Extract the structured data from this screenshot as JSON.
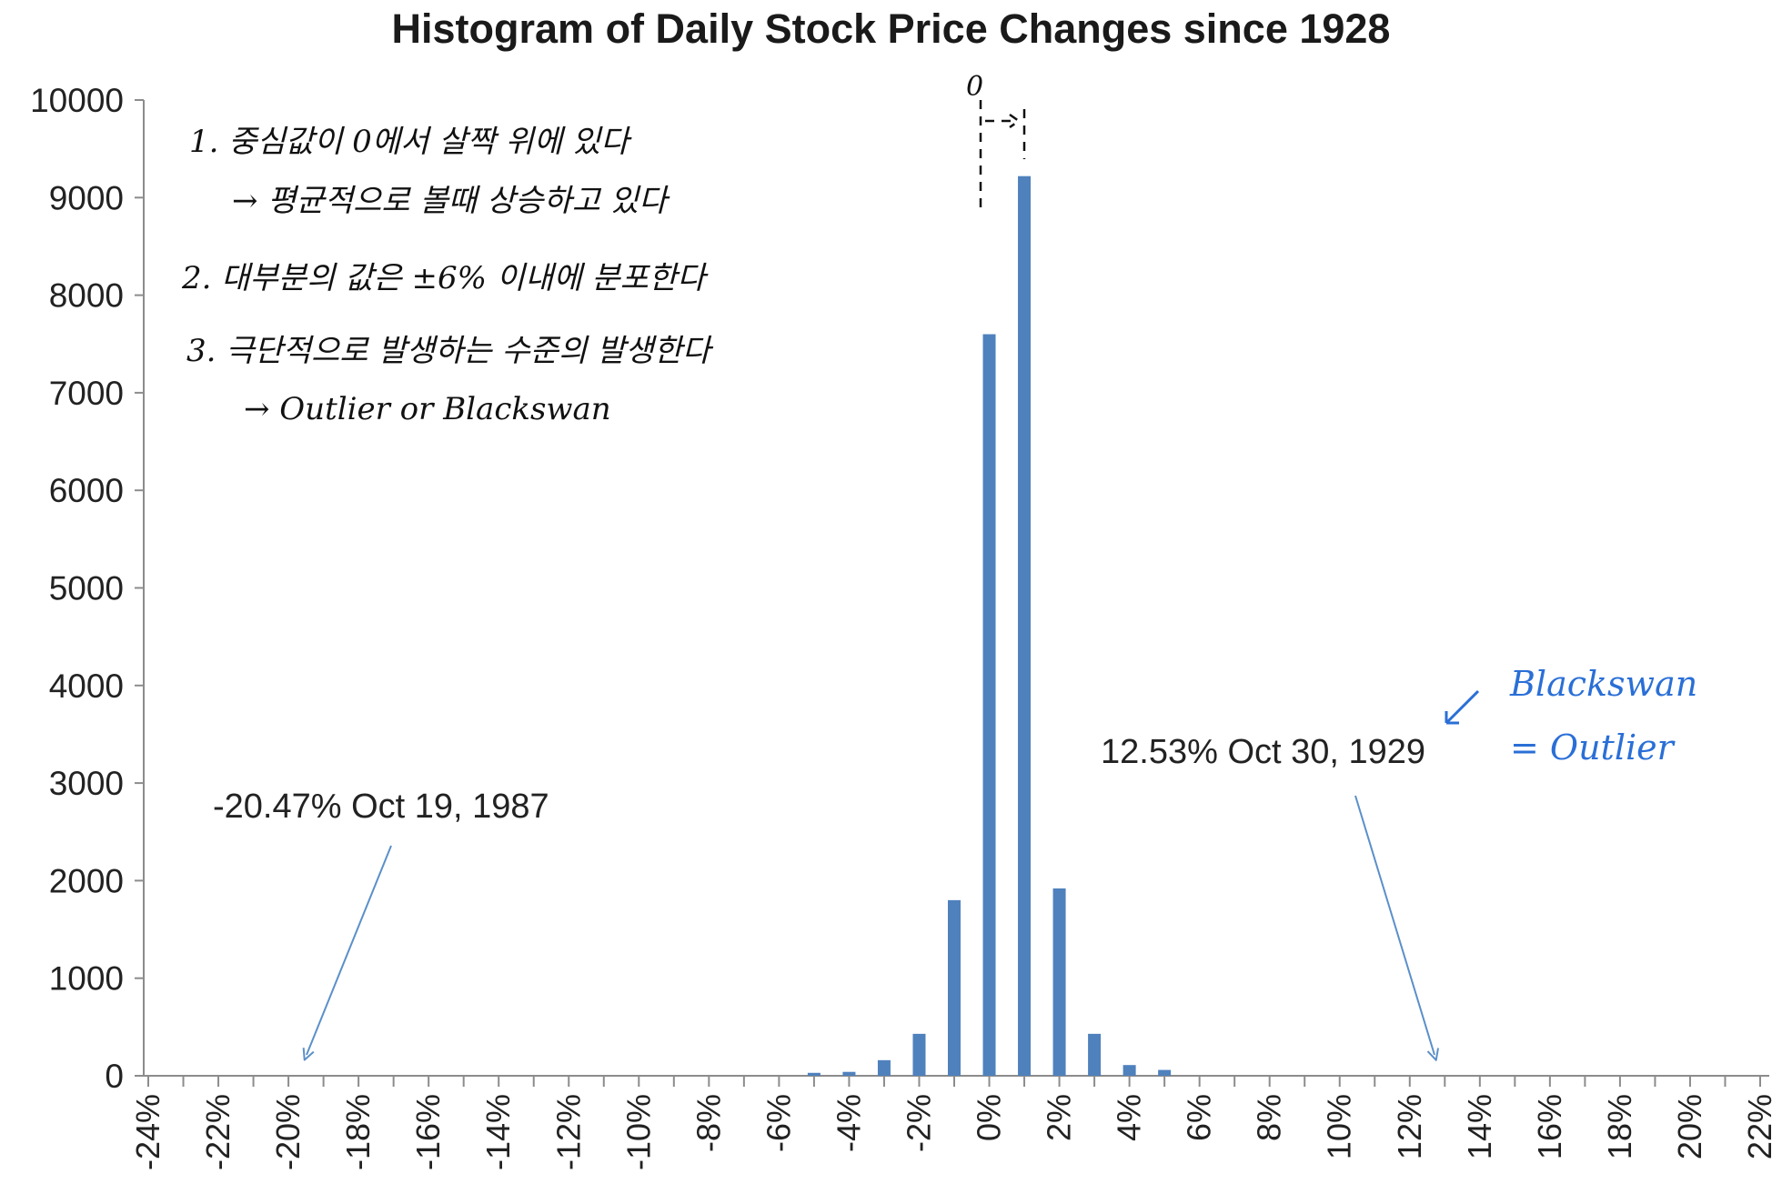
{
  "chart_data": {
    "type": "bar",
    "title": "Histogram of Daily Stock Price Changes  since 1928",
    "xlabel": "",
    "ylabel": "",
    "ylim": [
      0,
      10000
    ],
    "yticks": [
      0,
      1000,
      2000,
      3000,
      4000,
      5000,
      6000,
      7000,
      8000,
      9000,
      10000
    ],
    "xticks": [
      "-24%",
      "-22%",
      "-20%",
      "-18%",
      "-16%",
      "-14%",
      "-12%",
      "-10%",
      "-8%",
      "-6%",
      "-4%",
      "-2%",
      "0%",
      "2%",
      "4%",
      "6%",
      "8%",
      "10%",
      "12%",
      "14%",
      "16%",
      "18%",
      "20%",
      "22%"
    ],
    "bin_centers": [
      -5,
      -4,
      -3,
      -2,
      -1,
      0,
      1,
      2,
      3,
      4,
      5
    ],
    "values": [
      30,
      40,
      160,
      430,
      1800,
      7600,
      9220,
      1920,
      430,
      110,
      60
    ],
    "grid": false,
    "bar_color": "#4f81bd"
  },
  "annotations": {
    "left_label": "-20.47% Oct 19, 1987",
    "right_label": "12.53% Oct 30, 1929"
  },
  "handwritten": {
    "line1": "1. 중심값이 0에서 살짝 위에 있다",
    "line2": "→ 평균적으로 볼때 상승하고 있다",
    "line3": "2. 대부분의 값은 ±6% 이내에 분포한다",
    "line4": "3. 극단적으로 발생하는 수준의 발생한다",
    "line5": "→ Outlier or Blackswan",
    "zero_mark": "0",
    "blue_line1": "Blackswan",
    "blue_line2": "= Outlier"
  }
}
